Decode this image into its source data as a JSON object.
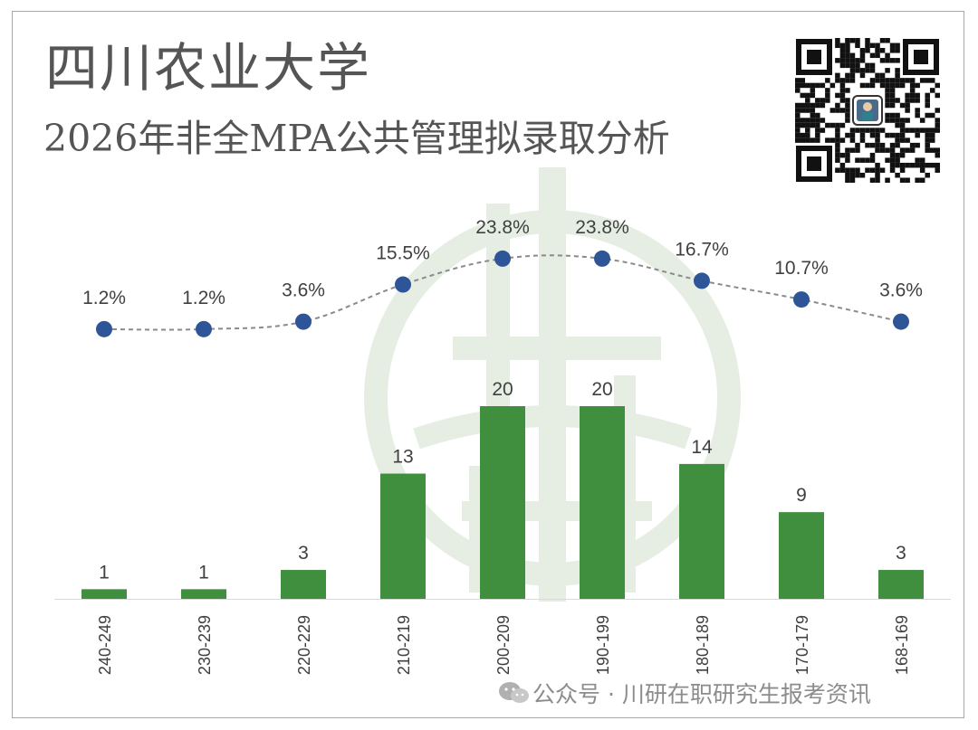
{
  "header": {
    "title": "四川农业大学",
    "subtitle": "2026年非全MPA公共管理拟录取分析"
  },
  "footer": {
    "text": "公众号 · 川研在职研究生报考资讯"
  },
  "colors": {
    "bar": "#3f8f3f",
    "dot": "#2e5597",
    "line": "#8a8a8a",
    "label": "#404040",
    "watermark": "#e6eee4"
  },
  "icons": [
    "qr-code-icon",
    "wechat-icon",
    "watermark-logo-icon"
  ],
  "chart_data": {
    "type": "bar",
    "categories": [
      "240-249",
      "230-239",
      "220-229",
      "210-219",
      "200-209",
      "190-199",
      "180-189",
      "170-179",
      "168-169"
    ],
    "series": [
      {
        "type": "bar",
        "values": [
          1,
          1,
          3,
          13,
          20,
          20,
          14,
          9,
          3
        ]
      },
      {
        "type": "line",
        "values": [
          1.2,
          1.2,
          3.6,
          15.5,
          23.8,
          23.8,
          16.7,
          10.7,
          3.6
        ],
        "labels": [
          "1.2%",
          "1.2%",
          "3.6%",
          "15.5%",
          "23.8%",
          "23.8%",
          "16.7%",
          "10.7%",
          "3.6%"
        ]
      }
    ],
    "title": "",
    "xlabel": "",
    "ylabel": "",
    "grid": false
  }
}
